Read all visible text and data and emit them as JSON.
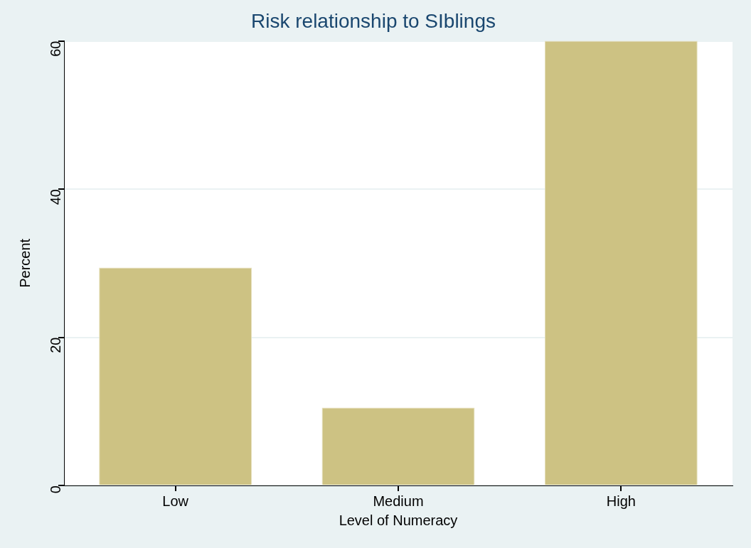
{
  "chart_data": {
    "type": "bar",
    "title": "Risk relationship to SIblings",
    "xlabel": "Level of Numeracy",
    "ylabel": "Percent",
    "categories": [
      "Low",
      "Medium",
      "High"
    ],
    "values": [
      29.4,
      10.5,
      60
    ],
    "color": "#cdc283",
    "ylim": [
      0,
      60
    ],
    "yticks": [
      0,
      20,
      40,
      60
    ],
    "grid": "y",
    "legend": false
  }
}
